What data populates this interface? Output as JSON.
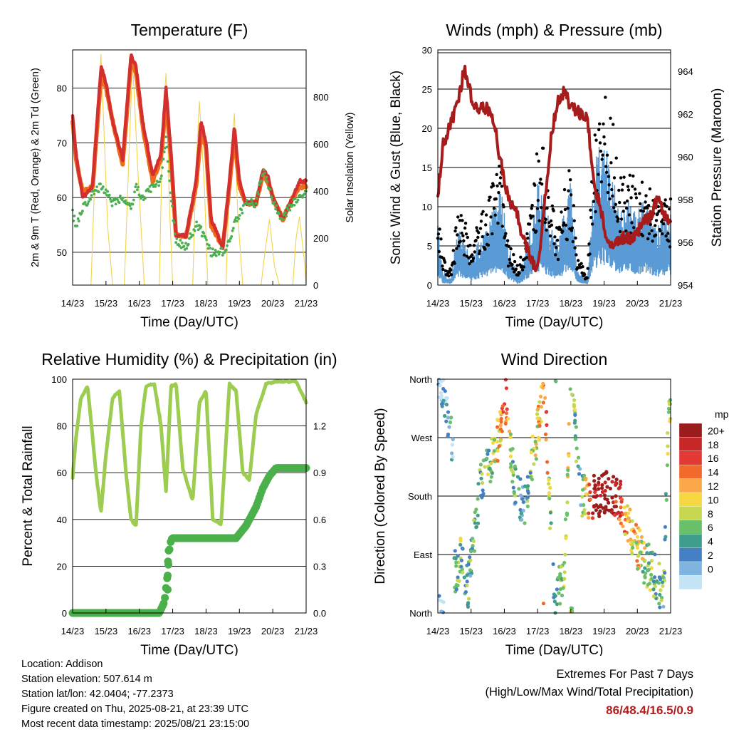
{
  "colors": {
    "t2m": "#d32f2f",
    "t9m": "#ef6c1a",
    "td": "#4caf50",
    "solar": "#f3d34a",
    "wind": "#5a9bd5",
    "gust": "#000000",
    "pressure": "#a61c1c",
    "rh": "#9ccc50",
    "precip": "#4bb04b",
    "extremes": "#b71c1c"
  },
  "x_ticks": [
    "14/23",
    "15/23",
    "16/23",
    "17/23",
    "18/23",
    "19/23",
    "20/23",
    "21/23"
  ],
  "chart_data": [
    {
      "type": "line",
      "title": "Temperature (F)",
      "xlabel": "Time (Day/UTC)",
      "ylabel": "2m & 9m T (Red, Orange) & 2m Td (Green)",
      "y2label": "Solar Insolation (Yellow)",
      "ylim": [
        44,
        87
      ],
      "yticks": [
        "50",
        "60",
        "70",
        "80"
      ],
      "y2lim": [
        0,
        1000
      ],
      "y2ticks": [
        "0",
        "200",
        "400",
        "600",
        "800"
      ],
      "grid": true,
      "x": [
        0,
        0.1,
        0.3,
        0.6,
        0.85,
        1.0,
        1.2,
        1.5,
        1.75,
        1.9,
        2.1,
        2.4,
        2.65,
        2.8,
        2.95,
        3.1,
        3.4,
        3.7,
        3.85,
        4.0,
        4.15,
        4.5,
        4.7,
        4.85,
        5.0,
        5.2,
        5.5,
        5.7,
        5.85,
        6.0,
        6.3,
        6.6,
        6.8,
        7.0
      ],
      "series": [
        {
          "name": "2m T",
          "values": [
            75,
            68,
            60,
            62,
            84,
            81,
            74,
            67,
            86,
            84,
            74,
            64,
            68,
            80,
            68,
            53,
            53,
            63,
            74,
            70,
            56,
            51,
            63,
            73,
            63,
            59,
            59,
            65,
            64,
            60,
            56,
            60,
            63,
            63
          ]
        },
        {
          "name": "9m T",
          "values": [
            74,
            67,
            61,
            62,
            82,
            80,
            74,
            66,
            85,
            83,
            73,
            63,
            67,
            78,
            67,
            53,
            53,
            62,
            72,
            69,
            55,
            51,
            62,
            71,
            62,
            59,
            59,
            64,
            63,
            60,
            56,
            60,
            62,
            62
          ]
        },
        {
          "name": "2m Td",
          "values": [
            57,
            55,
            58,
            61,
            62,
            61,
            59,
            60,
            58,
            62,
            60,
            62,
            63,
            71,
            60,
            52,
            51,
            55,
            54,
            52,
            50,
            50,
            52,
            55,
            57,
            59,
            59,
            65,
            63,
            59,
            56,
            59,
            60,
            61
          ]
        },
        {
          "name": "Solar",
          "x": [
            0,
            0.55,
            0.65,
            0.85,
            0.95,
            1.05,
            1.2,
            1.55,
            1.7,
            1.8,
            1.95,
            2.15,
            2.6,
            2.7,
            2.8,
            2.9,
            3.0,
            3.2,
            3.6,
            3.7,
            3.8,
            3.95,
            4.05,
            4.2,
            4.6,
            4.7,
            4.85,
            4.95,
            5.1,
            5.25,
            5.65,
            5.75,
            5.9,
            6.05,
            6.2,
            6.6,
            6.7,
            6.8,
            6.95,
            7.0
          ],
          "values": [
            0,
            0,
            400,
            980,
            620,
            250,
            0,
            0,
            600,
            950,
            500,
            0,
            0,
            700,
            900,
            350,
            0,
            0,
            0,
            500,
            780,
            420,
            0,
            0,
            0,
            450,
            730,
            300,
            0,
            0,
            0,
            120,
            280,
            80,
            0,
            0,
            200,
            290,
            100,
            0
          ]
        }
      ]
    },
    {
      "type": "line",
      "title": "Winds (mph) & Pressure (mb)",
      "xlabel": "Time (Day/UTC)",
      "ylabel": "Sonic Wind & Gust (Blue, Black)",
      "y2label": "Station Pressure (Maroon)",
      "ylim": [
        0,
        30
      ],
      "yticks": [
        "0",
        "5",
        "10",
        "15",
        "20",
        "25",
        "30"
      ],
      "y2lim": [
        954,
        965
      ],
      "y2ticks": [
        "954",
        "956",
        "958",
        "960",
        "962",
        "964"
      ],
      "grid": true,
      "x": [
        0,
        0.15,
        0.4,
        0.6,
        0.8,
        1.0,
        1.2,
        1.5,
        1.7,
        1.9,
        2.1,
        2.4,
        2.6,
        2.8,
        3.0,
        3.2,
        3.4,
        3.6,
        3.8,
        4.0,
        4.2,
        4.5,
        4.7,
        4.9,
        5.1,
        5.3,
        5.5,
        5.8,
        6.0,
        6.2,
        6.4,
        6.6,
        6.8,
        7.0
      ],
      "series": [
        {
          "name": "Wind",
          "values": [
            4,
            1,
            0.5,
            4,
            3,
            2,
            3,
            4,
            6,
            7,
            3,
            0.5,
            2,
            4,
            7,
            6,
            4,
            3,
            5,
            7,
            1,
            0.5,
            8,
            10,
            9,
            7,
            5,
            6,
            5,
            6,
            5,
            4,
            5,
            5
          ]
        },
        {
          "name": "Gust",
          "values": [
            10,
            3,
            2,
            8,
            7,
            4,
            7,
            9,
            12,
            14,
            5,
            2,
            4,
            8,
            15,
            14,
            9,
            6,
            10,
            13,
            3,
            1,
            16,
            20,
            19,
            16,
            11,
            12,
            10,
            11,
            10,
            8,
            10,
            9
          ]
        },
        {
          "name": "Pressure",
          "values": [
            958.2,
            960.5,
            961.6,
            962.5,
            964.2,
            962.8,
            962.2,
            962.3,
            961.5,
            959.7,
            958.2,
            957.2,
            956.0,
            955.2,
            954.7,
            957.6,
            960.8,
            962.6,
            963.0,
            962.4,
            962.1,
            961.8,
            958.6,
            957.6,
            955.8,
            955.9,
            956.2,
            956.2,
            956.4,
            957.1,
            957.2,
            958.1,
            957.4,
            956.7
          ]
        }
      ]
    },
    {
      "type": "line",
      "title": "Relative Humidity (%) & Precipitation (in)",
      "xlabel": "Time (Day/UTC)",
      "ylabel": "Percent & Total Rainfall",
      "ylim": [
        0,
        100
      ],
      "yticks": [
        "0",
        "20",
        "40",
        "60",
        "80",
        "100"
      ],
      "y2lim": [
        0,
        1.5
      ],
      "y2ticks": [
        "0.0",
        "0.3",
        "0.6",
        "0.9",
        "1.2"
      ],
      "grid": true,
      "x": [
        0,
        0.1,
        0.25,
        0.45,
        0.7,
        0.85,
        1.0,
        1.2,
        1.4,
        1.6,
        1.75,
        1.9,
        2.05,
        2.2,
        2.45,
        2.65,
        2.8,
        2.95,
        3.1,
        3.3,
        3.6,
        3.8,
        4.0,
        4.2,
        4.45,
        4.7,
        4.9,
        5.1,
        5.3,
        5.5,
        5.8,
        6.1,
        6.4,
        6.7,
        7.0
      ],
      "series": [
        {
          "name": "RH",
          "values": [
            58,
            75,
            92,
            97,
            60,
            43,
            68,
            92,
            95,
            60,
            40,
            37,
            80,
            97,
            98,
            80,
            52,
            97,
            98,
            62,
            48,
            90,
            95,
            40,
            38,
            98,
            95,
            60,
            57,
            85,
            98,
            99,
            99,
            99,
            90
          ]
        },
        {
          "name": "Precip",
          "x": [
            0,
            2.6,
            2.75,
            2.85,
            2.9,
            2.95,
            3.0,
            4.9,
            5.2,
            5.5,
            5.7,
            5.9,
            6.1,
            6.3,
            7.0
          ],
          "values": [
            0,
            0,
            0.07,
            0.25,
            0.4,
            0.47,
            0.48,
            0.48,
            0.56,
            0.68,
            0.8,
            0.88,
            0.93,
            0.93,
            0.93
          ]
        }
      ]
    },
    {
      "type": "scatter",
      "title": "Wind Direction",
      "xlabel": "Time (Day/UTC)",
      "ylabel": "Direction (Colored By Speed)",
      "ylim": [
        0,
        360
      ],
      "yticks": [
        "North",
        "East",
        "South",
        "West",
        "North"
      ],
      "grid": true,
      "legend": {
        "title": "mph",
        "labels": [
          "20+",
          "18",
          "16",
          "14",
          "12",
          "10",
          "8",
          "6",
          "4",
          "2",
          "0"
        ],
        "colors": [
          "#9b1c1c",
          "#c62828",
          "#e53935",
          "#f2692c",
          "#fba948",
          "#f5d842",
          "#c5d84f",
          "#6abf69",
          "#3f9e8b",
          "#4480c3",
          "#7fb4e0",
          "#c4e3f5"
        ]
      },
      "trend": [
        {
          "x": 0.0,
          "y": 355,
          "s": 1
        },
        {
          "x": 0.2,
          "y": 340,
          "s": 1
        },
        {
          "x": 0.45,
          "y": 250,
          "s": 2
        },
        {
          "x": 0.5,
          "y": 60,
          "s": 3
        },
        {
          "x": 0.7,
          "y": 90,
          "s": 4
        },
        {
          "x": 0.9,
          "y": 40,
          "s": 3
        },
        {
          "x": 1.3,
          "y": 200,
          "s": 3
        },
        {
          "x": 1.5,
          "y": 220,
          "s": 4
        },
        {
          "x": 1.9,
          "y": 280,
          "s": 7
        },
        {
          "x": 2.05,
          "y": 330,
          "s": 8
        },
        {
          "x": 2.3,
          "y": 200,
          "s": 3
        },
        {
          "x": 2.6,
          "y": 160,
          "s": 2
        },
        {
          "x": 2.8,
          "y": 220,
          "s": 4
        },
        {
          "x": 3.05,
          "y": 300,
          "s": 6
        },
        {
          "x": 3.2,
          "y": 355,
          "s": 9
        },
        {
          "x": 3.5,
          "y": 20,
          "s": 2
        },
        {
          "x": 3.8,
          "y": 60,
          "s": 6
        },
        {
          "x": 4.0,
          "y": 355,
          "s": 5
        },
        {
          "x": 4.3,
          "y": 180,
          "s": 3
        },
        {
          "x": 4.7,
          "y": 180,
          "s": 11
        },
        {
          "x": 5.0,
          "y": 185,
          "s": 12
        },
        {
          "x": 5.3,
          "y": 185,
          "s": 11
        },
        {
          "x": 5.6,
          "y": 160,
          "s": 7
        },
        {
          "x": 5.9,
          "y": 110,
          "s": 6
        },
        {
          "x": 6.2,
          "y": 80,
          "s": 5
        },
        {
          "x": 6.5,
          "y": 60,
          "s": 4
        },
        {
          "x": 6.8,
          "y": 30,
          "s": 3
        },
        {
          "x": 6.95,
          "y": 330,
          "s": 5
        }
      ]
    }
  ],
  "info": {
    "location": "Location: Addison",
    "elevation": "Station elevation: 507.614 m",
    "latlon": "Station lat/lon: 42.0404; -77.2373",
    "created": "Figure created on Thu, 2025-08-21, at 23:39 UTC",
    "recent": "Most recent data timestamp: 2025/08/21 23:15:00"
  },
  "extremes": {
    "title": "Extremes For Past 7 Days",
    "subtitle": "(High/Low/Max Wind/Total Precipitation)",
    "values": "86/48.4/16.5/0.9"
  }
}
